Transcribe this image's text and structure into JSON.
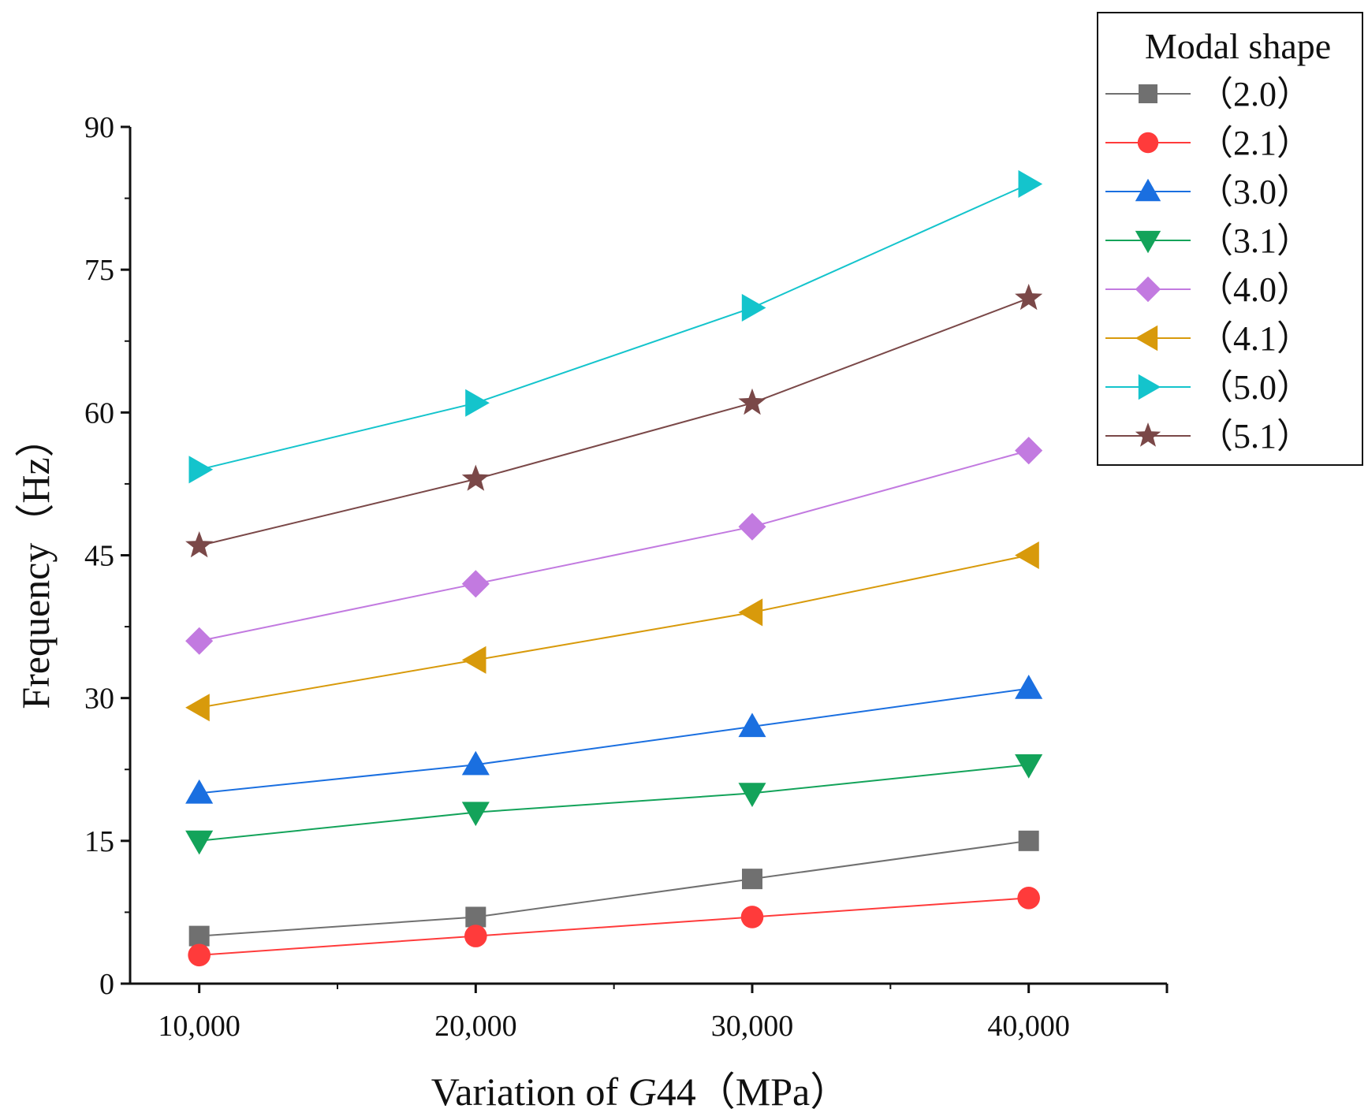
{
  "chart_data": {
    "type": "line",
    "title": "",
    "xlabel": "Variation of G44（MPa）",
    "xlabel_parts": {
      "prefix": "Variation of ",
      "italic": "G",
      "suffix": "44（MPa）"
    },
    "ylabel": "Frequency（Hz）",
    "x": [
      10000,
      20000,
      30000,
      40000
    ],
    "x_tick_labels": [
      "10,000",
      "20,000",
      "30,000",
      "40,000"
    ],
    "xlim": [
      7500,
      45000
    ],
    "ylim": [
      0,
      90
    ],
    "y_ticks": [
      0,
      15,
      30,
      45,
      60,
      75,
      90
    ],
    "y_tick_labels": [
      "0",
      "15",
      "30",
      "45",
      "60",
      "75",
      "90"
    ],
    "grid": false,
    "legend": {
      "title": "Modal shape",
      "position": "top-right outside"
    },
    "series": [
      {
        "name": "（2.0）",
        "color": "#707070",
        "marker": "square",
        "values": [
          5,
          7,
          11,
          15
        ]
      },
      {
        "name": "（2.1）",
        "color": "#ff3b3b",
        "marker": "circle",
        "values": [
          3,
          5,
          7,
          9
        ]
      },
      {
        "name": "（3.0）",
        "color": "#1a6fe0",
        "marker": "triangle-up",
        "values": [
          20,
          23,
          27,
          31
        ]
      },
      {
        "name": "（3.1）",
        "color": "#13a35a",
        "marker": "triangle-down",
        "values": [
          15,
          18,
          20,
          23
        ]
      },
      {
        "name": "（4.0）",
        "color": "#c27ae0",
        "marker": "diamond",
        "values": [
          36,
          42,
          48,
          56
        ]
      },
      {
        "name": "（4.1）",
        "color": "#d89a0b",
        "marker": "triangle-left",
        "values": [
          29,
          34,
          39,
          45
        ]
      },
      {
        "name": "（5.0）",
        "color": "#14c4cc",
        "marker": "triangle-right",
        "values": [
          54,
          61,
          71,
          84
        ]
      },
      {
        "name": "（5.1）",
        "color": "#7a4848",
        "marker": "star",
        "values": [
          46,
          53,
          61,
          72
        ]
      }
    ]
  }
}
